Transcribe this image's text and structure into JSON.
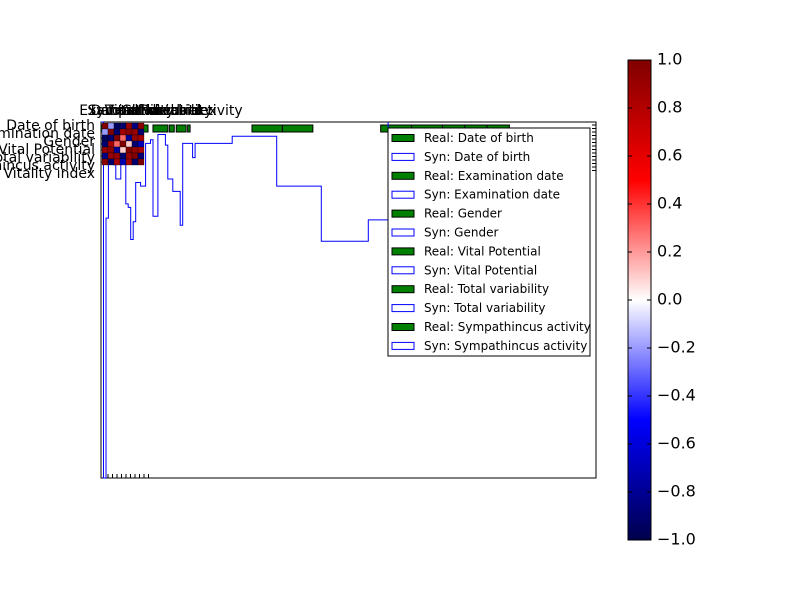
{
  "chart_data": [
    {
      "type": "histogram",
      "title": "",
      "xlabel": "",
      "ylabel": "",
      "legend_position": "upper right",
      "series": [
        {
          "name": "Real: Date of birth",
          "style": "filled",
          "color": "#008000"
        },
        {
          "name": "Syn: Date of birth",
          "style": "outline",
          "color": "#0000ff"
        },
        {
          "name": "Real: Examination date",
          "style": "filled",
          "color": "#008000"
        },
        {
          "name": "Syn: Examination date",
          "style": "outline",
          "color": "#0000ff"
        },
        {
          "name": "Real: Gender",
          "style": "filled",
          "color": "#008000"
        },
        {
          "name": "Syn: Gender",
          "style": "outline",
          "color": "#0000ff"
        },
        {
          "name": "Real: Vital Potential",
          "style": "filled",
          "color": "#008000"
        },
        {
          "name": "Syn: Vital Potential",
          "style": "outline",
          "color": "#0000ff"
        },
        {
          "name": "Real: Total variability",
          "style": "filled",
          "color": "#008000"
        },
        {
          "name": "Syn: Total variability",
          "style": "outline",
          "color": "#0000ff"
        },
        {
          "name": "Real: Sympathincus activity",
          "style": "filled",
          "color": "#008000"
        },
        {
          "name": "Syn: Sympathincus activity",
          "style": "outline",
          "color": "#0000ff"
        }
      ],
      "real_bar_runs": [
        {
          "x0": 0.0,
          "x1": 0.07
        },
        {
          "x0": 0.075,
          "x1": 0.095
        },
        {
          "x0": 0.105,
          "x1": 0.135
        },
        {
          "x0": 0.138,
          "x1": 0.148
        },
        {
          "x0": 0.152,
          "x1": 0.172
        },
        {
          "x0": 0.175,
          "x1": 0.18
        },
        {
          "x0": 0.305,
          "x1": 0.428
        },
        {
          "x0": 0.565,
          "x1": 0.69
        },
        {
          "x0": 0.69,
          "x1": 0.825
        }
      ],
      "syn_steps": [
        [
          0.0,
          0.0
        ],
        [
          0.005,
          0.0
        ],
        [
          0.005,
          1.0
        ],
        [
          0.01,
          1.0
        ],
        [
          0.01,
          0.27
        ],
        [
          0.015,
          0.27
        ],
        [
          0.015,
          0.11
        ],
        [
          0.025,
          0.11
        ],
        [
          0.025,
          0.12
        ],
        [
          0.03,
          0.12
        ],
        [
          0.03,
          0.16
        ],
        [
          0.04,
          0.16
        ],
        [
          0.04,
          0.06
        ],
        [
          0.05,
          0.06
        ],
        [
          0.05,
          0.23
        ],
        [
          0.055,
          0.23
        ],
        [
          0.055,
          0.24
        ],
        [
          0.06,
          0.24
        ],
        [
          0.06,
          0.33
        ],
        [
          0.065,
          0.33
        ],
        [
          0.065,
          0.28
        ],
        [
          0.07,
          0.28
        ],
        [
          0.07,
          0.17
        ],
        [
          0.08,
          0.17
        ],
        [
          0.08,
          0.18
        ],
        [
          0.09,
          0.18
        ],
        [
          0.09,
          0.06
        ],
        [
          0.1,
          0.06
        ],
        [
          0.1,
          0.05
        ],
        [
          0.105,
          0.05
        ],
        [
          0.105,
          0.265
        ],
        [
          0.115,
          0.265
        ],
        [
          0.115,
          0.035
        ],
        [
          0.13,
          0.035
        ],
        [
          0.13,
          0.065
        ],
        [
          0.135,
          0.065
        ],
        [
          0.135,
          0.16
        ],
        [
          0.145,
          0.16
        ],
        [
          0.145,
          0.195
        ],
        [
          0.16,
          0.195
        ],
        [
          0.16,
          0.29
        ],
        [
          0.165,
          0.29
        ],
        [
          0.165,
          0.06
        ],
        [
          0.185,
          0.06
        ],
        [
          0.185,
          0.1
        ],
        [
          0.19,
          0.1
        ],
        [
          0.19,
          0.06
        ],
        [
          0.265,
          0.06
        ],
        [
          0.265,
          0.04
        ],
        [
          0.355,
          0.04
        ],
        [
          0.355,
          0.18
        ],
        [
          0.445,
          0.18
        ],
        [
          0.445,
          0.335
        ],
        [
          0.54,
          0.335
        ],
        [
          0.54,
          0.275
        ],
        [
          0.58,
          0.275
        ],
        [
          0.58,
          0.0
        ]
      ]
    },
    {
      "type": "heatmap",
      "title": "",
      "row_labels": [
        "Date of birth",
        "Examination date",
        "Gender",
        "Vital Potential",
        "Total variability",
        "Sympathincus activity",
        "Vitality index"
      ],
      "column_labels": [
        "Date of birth",
        "Examination date",
        "Gender",
        "Vital Potential",
        "Total variability",
        "Sympathincus activity",
        "Vitality index"
      ],
      "values": [
        [
          1.0,
          -0.2,
          -0.95,
          -0.9,
          0.9,
          -0.85,
          0.95
        ],
        [
          -0.2,
          1.0,
          -0.9,
          0.85,
          0.95,
          0.9,
          -0.9
        ],
        [
          -0.95,
          -0.9,
          1.0,
          0.3,
          -0.8,
          0.9,
          0.85
        ],
        [
          -0.9,
          0.85,
          0.3,
          1.0,
          0.1,
          -0.9,
          -0.7
        ],
        [
          0.9,
          0.95,
          -0.8,
          0.1,
          1.0,
          0.9,
          0.85
        ],
        [
          -0.85,
          0.9,
          0.9,
          -0.9,
          0.9,
          1.0,
          -0.9
        ],
        [
          0.95,
          -0.9,
          0.85,
          -0.7,
          0.85,
          -0.9,
          1.0
        ]
      ],
      "colorbar": {
        "min": -1.0,
        "max": 1.0,
        "ticks": [
          "1.0",
          "0.8",
          "0.6",
          "0.4",
          "0.2",
          "0.0",
          "−0.2",
          "−0.4",
          "−0.6",
          "−0.8",
          "−1.0"
        ],
        "tick_values": [
          1.0,
          0.8,
          0.6,
          0.4,
          0.2,
          0.0,
          -0.2,
          -0.4,
          -0.6,
          -0.8,
          -1.0
        ],
        "colormap": "seismic",
        "colors": [
          "#00004c",
          "#0000ff",
          "#ffffff",
          "#ff0000",
          "#800000"
        ]
      }
    }
  ]
}
